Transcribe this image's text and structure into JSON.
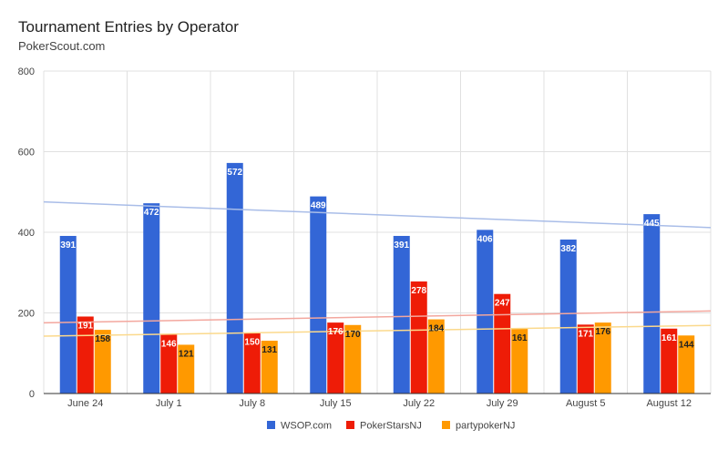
{
  "title": "Tournament Entries by Operator",
  "subtitle": "PokerScout.com",
  "chart_data": {
    "type": "bar",
    "title": "Tournament Entries by Operator",
    "subtitle": "PokerScout.com",
    "categories": [
      "June 24",
      "July 1",
      "July 8",
      "July 15",
      "July 22",
      "July 29",
      "August 5",
      "August 12"
    ],
    "series": [
      {
        "name": "WSOP.com",
        "color": "#3366d6",
        "label_color": "#ffffff",
        "trend_color": "#a9bde8",
        "values": [
          391,
          472,
          572,
          489,
          391,
          406,
          382,
          445
        ]
      },
      {
        "name": "PokerStarsNJ",
        "color": "#ee1c07",
        "label_color": "#ffffff",
        "trend_color": "#f3a79e",
        "values": [
          191,
          146,
          150,
          176,
          278,
          247,
          171,
          161
        ]
      },
      {
        "name": "partypokerNJ",
        "color": "#ff9900",
        "label_color": "#212121",
        "trend_color": "#fbd98c",
        "values": [
          158,
          121,
          131,
          170,
          184,
          161,
          176,
          144
        ]
      }
    ],
    "ylim": [
      0,
      800
    ],
    "yticks": [
      0,
      200,
      400,
      600,
      800
    ],
    "grid": true,
    "trendlines": true,
    "legend_position": "bottom"
  }
}
